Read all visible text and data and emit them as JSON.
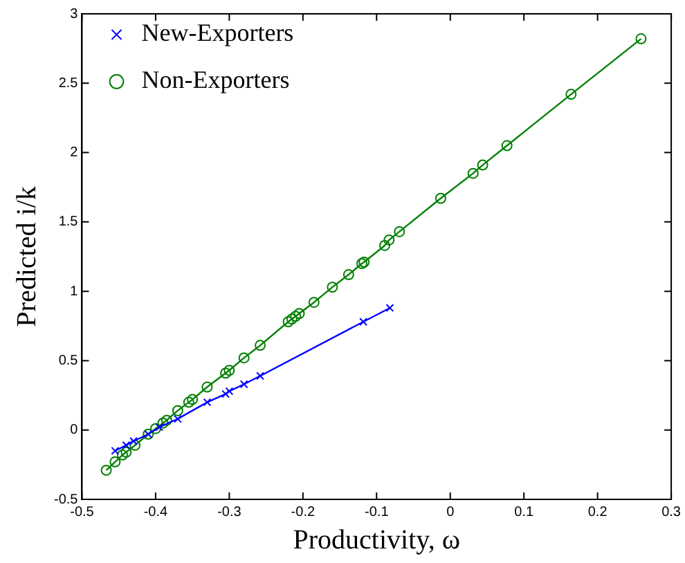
{
  "chart_data": {
    "type": "line",
    "xlabel": "Productivity, ω",
    "ylabel": "Predicted i/k",
    "xlim": [
      -0.5,
      0.3
    ],
    "xticks": [
      -0.5,
      -0.4,
      -0.3,
      -0.2,
      -0.1,
      0,
      0.1,
      0.2,
      0.3
    ],
    "ylim": [
      -0.5,
      3
    ],
    "yticks": [
      -0.5,
      0,
      0.5,
      1,
      1.5,
      2,
      2.5,
      3
    ],
    "grid": false,
    "legend": "top left",
    "series": [
      {
        "name": "New-Exporters",
        "color": "#0000ff",
        "marker": "cross",
        "x": [
          -0.455,
          -0.44,
          -0.43,
          -0.41,
          -0.395,
          -0.37,
          -0.33,
          -0.305,
          -0.3,
          -0.28,
          -0.258,
          -0.118,
          -0.082
        ],
        "values": [
          -0.15,
          -0.11,
          -0.08,
          -0.03,
          0.02,
          0.08,
          0.2,
          0.26,
          0.28,
          0.33,
          0.39,
          0.78,
          0.88
        ]
      },
      {
        "name": "Non-Exporters",
        "color": "#008000",
        "marker": "circle",
        "x": [
          -0.467,
          -0.455,
          -0.445,
          -0.44,
          -0.428,
          -0.41,
          -0.4,
          -0.39,
          -0.385,
          -0.37,
          -0.355,
          -0.35,
          -0.33,
          -0.305,
          -0.3,
          -0.28,
          -0.258,
          -0.22,
          -0.215,
          -0.21,
          -0.205,
          -0.185,
          -0.16,
          -0.138,
          -0.12,
          -0.117,
          -0.089,
          -0.083,
          -0.069,
          -0.013,
          0.031,
          0.044,
          0.077,
          0.164,
          0.259
        ],
        "values": [
          -0.29,
          -0.23,
          -0.18,
          -0.16,
          -0.11,
          -0.03,
          0.01,
          0.05,
          0.07,
          0.14,
          0.2,
          0.22,
          0.31,
          0.41,
          0.43,
          0.52,
          0.61,
          0.78,
          0.8,
          0.82,
          0.84,
          0.92,
          1.03,
          1.12,
          1.2,
          1.21,
          1.33,
          1.37,
          1.43,
          1.67,
          1.85,
          1.91,
          2.05,
          2.42,
          2.82
        ]
      }
    ]
  }
}
